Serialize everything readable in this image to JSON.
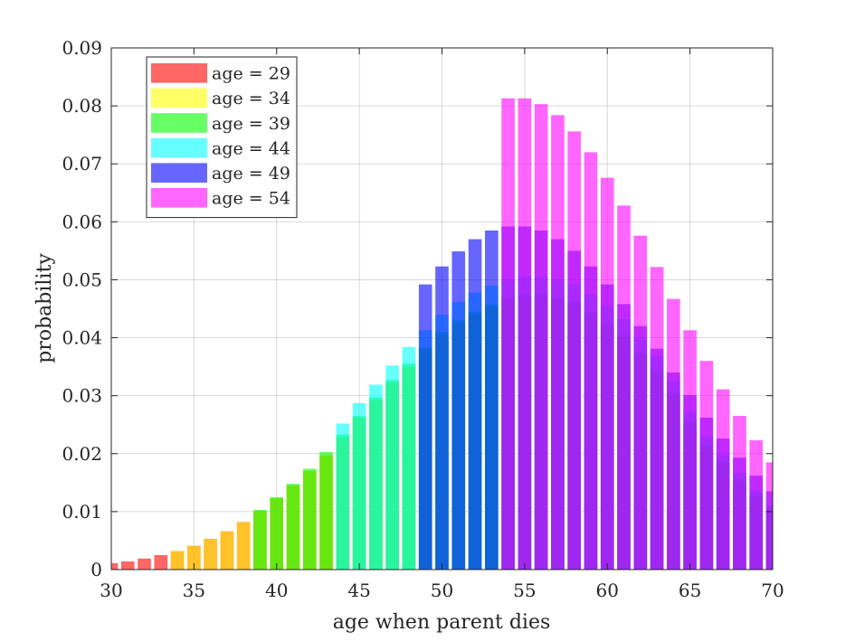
{
  "chart_data": {
    "type": "bar",
    "title": "",
    "xlabel": "age when parent dies",
    "ylabel": "probability",
    "xlim": [
      30,
      70
    ],
    "ylim": [
      0,
      0.09
    ],
    "xticks": [
      30,
      35,
      40,
      45,
      50,
      55,
      60,
      65,
      70
    ],
    "xtick_labels": [
      "30",
      "35",
      "40",
      "45",
      "50",
      "55",
      "60",
      "65",
      "70"
    ],
    "yticks": [
      0,
      0.01,
      0.02,
      0.03,
      0.04,
      0.05,
      0.06,
      0.07,
      0.08,
      0.09
    ],
    "ytick_labels": [
      "0",
      "0.01",
      "0.02",
      "0.03",
      "0.04",
      "0.05",
      "0.06",
      "0.07",
      "0.08",
      "0.09"
    ],
    "grid": true,
    "bar_opacity": 0.6,
    "legend": {
      "placement": "top-left"
    },
    "series": [
      {
        "name": "age = 29",
        "color": "#ff0000",
        "x": [
          30,
          31,
          32,
          33,
          34,
          35,
          36,
          37,
          38,
          39,
          40,
          41,
          42,
          43,
          44,
          45,
          46,
          47,
          48,
          49,
          50,
          51,
          52,
          53,
          54,
          55,
          56,
          57,
          58,
          59,
          60,
          61,
          62,
          63,
          64,
          65,
          66,
          67,
          68,
          69,
          70
        ],
        "values": [
          0.0011,
          0.0014,
          0.0019,
          0.0025,
          0.0032,
          0.0041,
          0.0053,
          0.0066,
          0.0082,
          0.0101,
          0.0123,
          0.0145,
          0.017,
          0.0197,
          0.0228,
          0.0262,
          0.0292,
          0.0323,
          0.035,
          0.038,
          0.0405,
          0.0425,
          0.044,
          0.0452,
          0.0465,
          0.047,
          0.047,
          0.0465,
          0.0458,
          0.044,
          0.042,
          0.04,
          0.037,
          0.034,
          0.03,
          0.025,
          0.021,
          0.018,
          0.015,
          0.0125,
          0.01
        ]
      },
      {
        "name": "age = 34",
        "color": "#ffff00",
        "x": [
          34,
          35,
          36,
          37,
          38,
          39,
          40,
          41,
          42,
          43,
          44,
          45,
          46,
          47,
          48,
          49,
          50,
          51,
          52,
          53,
          54,
          55,
          56,
          57,
          58,
          59,
          60,
          61,
          62,
          63,
          64,
          65,
          66,
          67,
          68,
          69,
          70
        ],
        "values": [
          0.0032,
          0.0041,
          0.0053,
          0.0066,
          0.0082,
          0.0101,
          0.0123,
          0.0145,
          0.017,
          0.0197,
          0.0228,
          0.0262,
          0.0292,
          0.0323,
          0.035,
          0.038,
          0.0405,
          0.0425,
          0.044,
          0.0452,
          0.0465,
          0.047,
          0.047,
          0.0465,
          0.0458,
          0.044,
          0.042,
          0.04,
          0.037,
          0.034,
          0.03,
          0.025,
          0.021,
          0.018,
          0.015,
          0.0125,
          0.01
        ]
      },
      {
        "name": "age = 39",
        "color": "#00ff00",
        "x": [
          39,
          40,
          41,
          42,
          43,
          44,
          45,
          46,
          47,
          48,
          49,
          50,
          51,
          52,
          53,
          54,
          55,
          56,
          57,
          58,
          59,
          60,
          61,
          62,
          63,
          64,
          65,
          66,
          67,
          68,
          69,
          70
        ],
        "values": [
          0.0103,
          0.0125,
          0.0148,
          0.0174,
          0.0203,
          0.0233,
          0.0265,
          0.0297,
          0.0327,
          0.0355,
          0.0383,
          0.041,
          0.043,
          0.0445,
          0.0457,
          0.047,
          0.0475,
          0.0475,
          0.047,
          0.0463,
          0.0445,
          0.0425,
          0.0405,
          0.0375,
          0.0345,
          0.0305,
          0.0255,
          0.0215,
          0.0185,
          0.0155,
          0.0128,
          0.0103
        ]
      },
      {
        "name": "age = 44",
        "color": "#00ffff",
        "x": [
          44,
          45,
          46,
          47,
          48,
          49,
          50,
          51,
          52,
          53,
          54,
          55,
          56,
          57,
          58,
          59,
          60,
          61,
          62,
          63,
          64,
          65,
          66,
          67,
          68,
          69,
          70
        ],
        "values": [
          0.0252,
          0.0287,
          0.0319,
          0.0352,
          0.0384,
          0.0413,
          0.044,
          0.0462,
          0.0478,
          0.049,
          0.05,
          0.0505,
          0.0505,
          0.05,
          0.0492,
          0.0475,
          0.0455,
          0.0432,
          0.04,
          0.0368,
          0.0325,
          0.0272,
          0.023,
          0.0198,
          0.0166,
          0.0137,
          0.011
        ]
      },
      {
        "name": "age = 49",
        "color": "#0000ff",
        "x": [
          49,
          50,
          51,
          52,
          53,
          54,
          55,
          56,
          57,
          58,
          59,
          60,
          61,
          62,
          63,
          64,
          65,
          66,
          67,
          68,
          69,
          70
        ],
        "values": [
          0.0492,
          0.0523,
          0.0549,
          0.057,
          0.0585,
          0.0592,
          0.0592,
          0.0585,
          0.057,
          0.055,
          0.0523,
          0.0492,
          0.0458,
          0.042,
          0.0381,
          0.034,
          0.0301,
          0.0262,
          0.0226,
          0.0193,
          0.0162,
          0.0135
        ]
      },
      {
        "name": "age = 54",
        "color": "#ff00ff",
        "x": [
          54,
          55,
          56,
          57,
          58,
          59,
          60,
          61,
          62,
          63,
          64,
          65,
          66,
          67,
          68,
          69,
          70
        ],
        "values": [
          0.0813,
          0.0813,
          0.0803,
          0.0784,
          0.0756,
          0.072,
          0.0676,
          0.0628,
          0.0576,
          0.0522,
          0.0467,
          0.0413,
          0.036,
          0.0311,
          0.0265,
          0.0223,
          0.0185
        ]
      }
    ]
  }
}
